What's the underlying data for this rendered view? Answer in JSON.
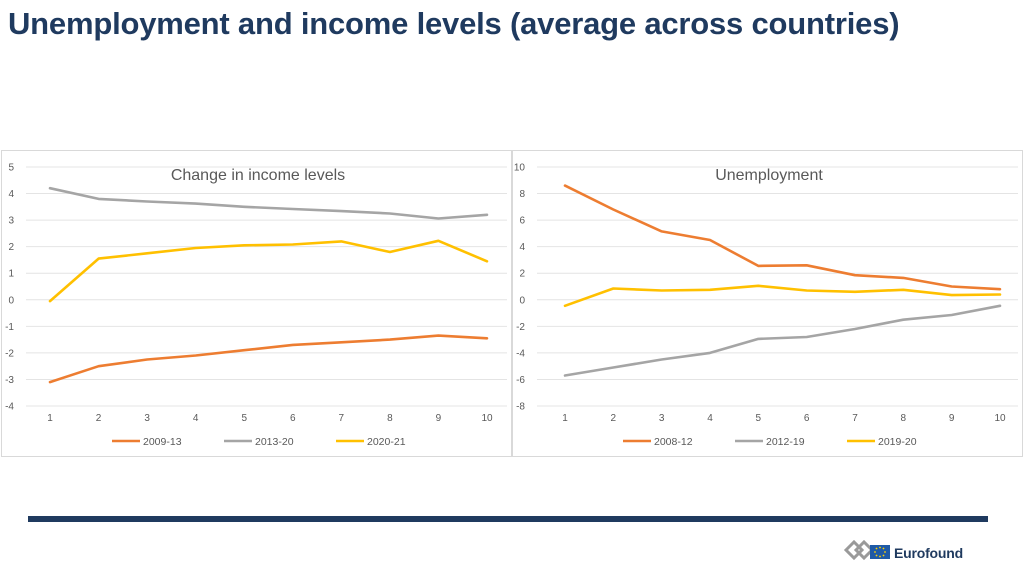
{
  "page": {
    "title": "Unemployment and income levels (average across countries)"
  },
  "branding": {
    "logo_text": "Eurofound"
  },
  "colors": {
    "orange": "#ed7d31",
    "gray": "#a5a5a5",
    "yellow": "#ffc000",
    "navy": "#1f3a5f"
  },
  "chart_data": [
    {
      "type": "line",
      "title": "Change in income levels",
      "x": [
        1,
        2,
        3,
        4,
        5,
        6,
        7,
        8,
        9,
        10
      ],
      "ylim": [
        -4,
        5
      ],
      "yticks": [
        -4,
        -3,
        -2,
        -1,
        0,
        1,
        2,
        3,
        4,
        5
      ],
      "grid": true,
      "legend": "bottom",
      "series": [
        {
          "name": "2009-13",
          "color": "#ed7d31",
          "values": [
            -3.1,
            -2.5,
            -2.25,
            -2.1,
            -1.9,
            -1.7,
            -1.6,
            -1.5,
            -1.35,
            -1.45
          ]
        },
        {
          "name": "2013-20",
          "color": "#a5a5a5",
          "values": [
            4.2,
            3.8,
            3.7,
            3.62,
            3.5,
            3.42,
            3.34,
            3.25,
            3.06,
            3.2
          ]
        },
        {
          "name": "2020-21",
          "color": "#ffc000",
          "values": [
            -0.05,
            1.55,
            1.75,
            1.95,
            2.05,
            2.08,
            2.2,
            1.8,
            2.22,
            1.45
          ]
        }
      ]
    },
    {
      "type": "line",
      "title": "Unemployment",
      "x": [
        1,
        2,
        3,
        4,
        5,
        6,
        7,
        8,
        9,
        10
      ],
      "ylim": [
        -8,
        10
      ],
      "yticks": [
        -8,
        -6,
        -4,
        -2,
        0,
        2,
        4,
        6,
        8,
        10
      ],
      "grid": true,
      "legend": "bottom",
      "series": [
        {
          "name": "2008-12",
          "color": "#ed7d31",
          "values": [
            8.6,
            6.8,
            5.15,
            4.5,
            2.55,
            2.6,
            1.85,
            1.65,
            1.0,
            0.8
          ]
        },
        {
          "name": "2012-19",
          "color": "#a5a5a5",
          "values": [
            -5.7,
            -5.1,
            -4.5,
            -4.0,
            -2.95,
            -2.8,
            -2.2,
            -1.5,
            -1.15,
            -0.45
          ]
        },
        {
          "name": "2019-20",
          "color": "#ffc000",
          "values": [
            -0.45,
            0.85,
            0.7,
            0.75,
            1.05,
            0.7,
            0.6,
            0.75,
            0.35,
            0.4
          ]
        }
      ]
    }
  ]
}
